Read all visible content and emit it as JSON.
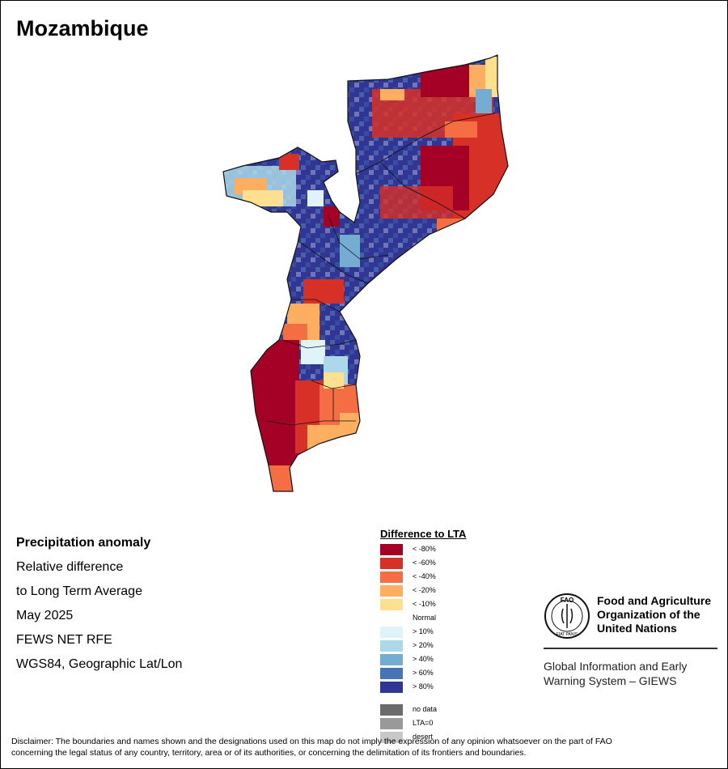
{
  "map": {
    "title": "Mozambique"
  },
  "info": {
    "heading": "Precipitation anomaly",
    "line1": "Relative difference",
    "line2": "to Long Term Average",
    "period": "May 2025",
    "source": "FEWS NET RFE",
    "projection": "WGS84, Geographic Lat/Lon"
  },
  "legend": {
    "title": "Difference to LTA",
    "items": [
      {
        "label": "< -80%",
        "color": "#a50026"
      },
      {
        "label": "< -60%",
        "color": "#d73027"
      },
      {
        "label": "< -40%",
        "color": "#f46d43"
      },
      {
        "label": "< -20%",
        "color": "#fdae61"
      },
      {
        "label": "< -10%",
        "color": "#fee090"
      },
      {
        "label": "Normal",
        "color": "#ffffff"
      },
      {
        "label": "> 10%",
        "color": "#e0f3f8"
      },
      {
        "label": "> 20%",
        "color": "#abd9e9"
      },
      {
        "label": "> 40%",
        "color": "#74add1"
      },
      {
        "label": "> 60%",
        "color": "#4575b4"
      },
      {
        "label": "> 80%",
        "color": "#313695"
      },
      {
        "label": "no data",
        "color": "#6b6b6b"
      },
      {
        "label": "LTA=0",
        "color": "#9a9a9a"
      },
      {
        "label": "desert",
        "color": "#c8c8c8"
      }
    ]
  },
  "fao": {
    "emblem_text": "FAO",
    "emblem_motto": "FIAT PANIS",
    "name_line1": "Food and Agriculture",
    "name_line2": "Organization of the",
    "name_line3": "United Nations",
    "giews_line1": "Global Information and Early",
    "giews_line2": "Warning System – GIEWS"
  },
  "disclaimer": {
    "line1": "Disclaimer: The boundaries and names shown and the designations used on this map do not imply the expression of any opinion whatsoever on the part of FAO",
    "line2": "concerning the legal status of any country, territory, area or of its authorities, or concerning the delimitation of its frontiers and boundaries."
  }
}
